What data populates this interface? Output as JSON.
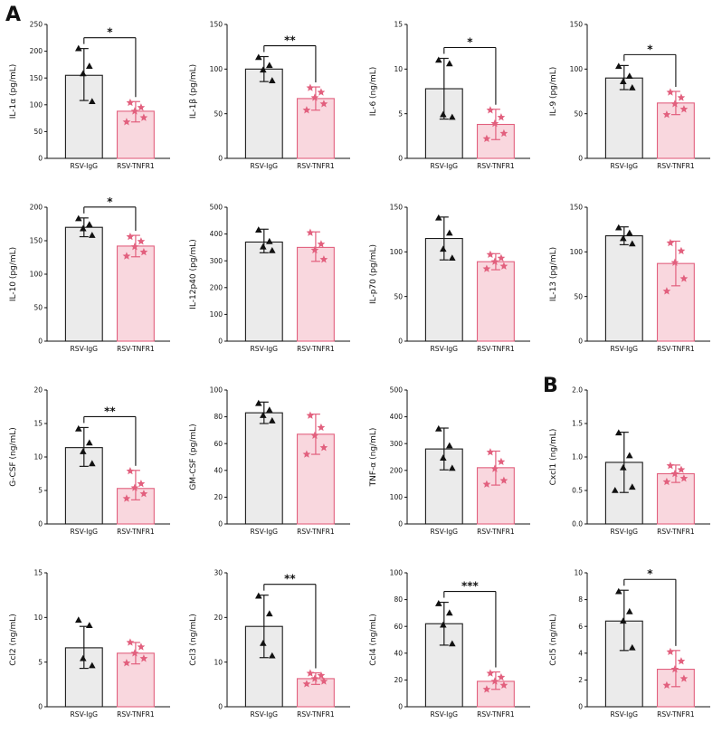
{
  "figure": {
    "panel_a_label": "A",
    "panel_b_label": "B",
    "categories": [
      "RSV-IgG",
      "RSV-TNFR1"
    ],
    "colors": {
      "group1_fill": "#ebebeb",
      "group1_stroke": "#1a1a1a",
      "group1_point": "#111111",
      "group2_fill": "#f9d7de",
      "group2_stroke": "#e2607e",
      "group2_point": "#e2607e"
    }
  },
  "chart_data": [
    {
      "type": "bar",
      "ylabel": "IL-1α (pg/mL)",
      "ylim": [
        0,
        250
      ],
      "yticks": [
        0,
        50,
        100,
        150,
        200,
        250
      ],
      "ytick_labels": [
        "0",
        "50",
        "100",
        "150",
        "200",
        "250"
      ],
      "categories": [
        "RSV-IgG",
        "RSV-TNFR1"
      ],
      "significance": "*",
      "series": [
        {
          "name": "RSV-IgG",
          "mean": 155,
          "err_lo": 108,
          "err_hi": 205,
          "points": [
            205,
            172,
            158,
            106
          ]
        },
        {
          "name": "RSV-TNFR1",
          "mean": 88,
          "err_lo": 68,
          "err_hi": 106,
          "points": [
            104,
            95,
            88,
            76,
            68
          ]
        }
      ]
    },
    {
      "type": "bar",
      "ylabel": "IL-1β (pg/mL)",
      "ylim": [
        0,
        150
      ],
      "yticks": [
        0,
        50,
        100,
        150
      ],
      "ytick_labels": [
        "0",
        "50",
        "100",
        "150"
      ],
      "categories": [
        "RSV-IgG",
        "RSV-TNFR1"
      ],
      "significance": "**",
      "series": [
        {
          "name": "RSV-IgG",
          "mean": 100,
          "err_lo": 86,
          "err_hi": 114,
          "points": [
            113,
            104,
            99,
            87
          ]
        },
        {
          "name": "RSV-TNFR1",
          "mean": 67,
          "err_lo": 54,
          "err_hi": 80,
          "points": [
            79,
            74,
            68,
            61,
            54
          ]
        }
      ]
    },
    {
      "type": "bar",
      "ylabel": "IL-6 (ng/mL)",
      "ylim": [
        0,
        15
      ],
      "yticks": [
        0,
        5,
        10,
        15
      ],
      "ytick_labels": [
        "0",
        "5",
        "10",
        "15"
      ],
      "categories": [
        "RSV-IgG",
        "RSV-TNFR1"
      ],
      "significance": "*",
      "series": [
        {
          "name": "RSV-IgG",
          "mean": 7.8,
          "err_lo": 4.4,
          "err_hi": 11.2,
          "points": [
            11,
            10.6,
            4.9,
            4.6
          ]
        },
        {
          "name": "RSV-TNFR1",
          "mean": 3.8,
          "err_lo": 2.1,
          "err_hi": 5.5,
          "points": [
            5.4,
            4.6,
            3.9,
            2.8,
            2.2
          ]
        }
      ]
    },
    {
      "type": "bar",
      "ylabel": "IL-9 (pg/mL)",
      "ylim": [
        0,
        150
      ],
      "yticks": [
        0,
        50,
        100,
        150
      ],
      "ytick_labels": [
        "0",
        "50",
        "100",
        "150"
      ],
      "categories": [
        "RSV-IgG",
        "RSV-TNFR1"
      ],
      "significance": "*",
      "series": [
        {
          "name": "RSV-IgG",
          "mean": 90,
          "err_lo": 77,
          "err_hi": 104,
          "points": [
            103,
            92,
            86,
            79
          ]
        },
        {
          "name": "RSV-TNFR1",
          "mean": 62,
          "err_lo": 49,
          "err_hi": 75,
          "points": [
            74,
            68,
            61,
            55,
            49
          ]
        }
      ]
    },
    {
      "type": "bar",
      "ylabel": "IL-10 (pg/mL)",
      "ylim": [
        0,
        200
      ],
      "yticks": [
        0,
        50,
        100,
        150,
        200
      ],
      "ytick_labels": [
        "0",
        "50",
        "100",
        "150",
        "200"
      ],
      "categories": [
        "RSV-IgG",
        "RSV-TNFR1"
      ],
      "significance": "*",
      "series": [
        {
          "name": "RSV-IgG",
          "mean": 170,
          "err_lo": 156,
          "err_hi": 184,
          "points": [
            183,
            174,
            168,
            158
          ]
        },
        {
          "name": "RSV-TNFR1",
          "mean": 142,
          "err_lo": 126,
          "err_hi": 158,
          "points": [
            156,
            149,
            141,
            133,
            127
          ]
        }
      ]
    },
    {
      "type": "bar",
      "ylabel": "IL-12p40 (pg/mL)",
      "ylim": [
        0,
        500
      ],
      "yticks": [
        0,
        100,
        200,
        300,
        400,
        500
      ],
      "ytick_labels": [
        "0",
        "100",
        "200",
        "300",
        "400",
        "500"
      ],
      "categories": [
        "RSV-IgG",
        "RSV-TNFR1"
      ],
      "significance": null,
      "series": [
        {
          "name": "RSV-IgG",
          "mean": 370,
          "err_lo": 330,
          "err_hi": 418,
          "points": [
            415,
            372,
            352,
            338
          ]
        },
        {
          "name": "RSV-TNFR1",
          "mean": 350,
          "err_lo": 298,
          "err_hi": 408,
          "points": [
            405,
            362,
            340,
            305
          ]
        }
      ]
    },
    {
      "type": "bar",
      "ylabel": "IL-p70 (pg/mL)",
      "ylim": [
        0,
        150
      ],
      "yticks": [
        0,
        50,
        100,
        150
      ],
      "ytick_labels": [
        "0",
        "50",
        "100",
        "150"
      ],
      "categories": [
        "RSV-IgG",
        "RSV-TNFR1"
      ],
      "significance": null,
      "series": [
        {
          "name": "RSV-IgG",
          "mean": 115,
          "err_lo": 91,
          "err_hi": 139,
          "points": [
            138,
            121,
            103,
            93
          ]
        },
        {
          "name": "RSV-TNFR1",
          "mean": 89,
          "err_lo": 80,
          "err_hi": 98,
          "points": [
            97,
            93,
            89,
            84,
            81
          ]
        }
      ]
    },
    {
      "type": "bar",
      "ylabel": "IL-13 (pg/mL)",
      "ylim": [
        0,
        150
      ],
      "yticks": [
        0,
        50,
        100,
        150
      ],
      "ytick_labels": [
        "0",
        "50",
        "100",
        "150"
      ],
      "categories": [
        "RSV-IgG",
        "RSV-TNFR1"
      ],
      "significance": null,
      "series": [
        {
          "name": "RSV-IgG",
          "mean": 118,
          "err_lo": 108,
          "err_hi": 128,
          "points": [
            127,
            121,
            115,
            109
          ]
        },
        {
          "name": "RSV-TNFR1",
          "mean": 87,
          "err_lo": 62,
          "err_hi": 112,
          "points": [
            110,
            101,
            88,
            70,
            56
          ]
        }
      ]
    },
    {
      "type": "bar",
      "ylabel": "G-CSF (ng/mL)",
      "ylim": [
        0,
        20
      ],
      "yticks": [
        0,
        5,
        10,
        15,
        20
      ],
      "ytick_labels": [
        "0",
        "5",
        "10",
        "15",
        "20"
      ],
      "categories": [
        "RSV-IgG",
        "RSV-TNFR1"
      ],
      "significance": "**",
      "series": [
        {
          "name": "RSV-IgG",
          "mean": 11.4,
          "err_lo": 8.6,
          "err_hi": 14.4,
          "points": [
            14.2,
            12.1,
            10.8,
            9
          ]
        },
        {
          "name": "RSV-TNFR1",
          "mean": 5.3,
          "err_lo": 3.6,
          "err_hi": 8,
          "points": [
            7.9,
            6,
            5.4,
            4.5,
            3.8
          ]
        }
      ]
    },
    {
      "type": "bar",
      "ylabel": "GM-CSF (pg/mL)",
      "ylim": [
        0,
        100
      ],
      "yticks": [
        0,
        20,
        40,
        60,
        80,
        100
      ],
      "ytick_labels": [
        "0",
        "20",
        "40",
        "60",
        "80",
        "100"
      ],
      "categories": [
        "RSV-IgG",
        "RSV-TNFR1"
      ],
      "significance": null,
      "series": [
        {
          "name": "RSV-IgG",
          "mean": 83,
          "err_lo": 75,
          "err_hi": 91,
          "points": [
            90,
            85,
            81,
            77
          ]
        },
        {
          "name": "RSV-TNFR1",
          "mean": 67,
          "err_lo": 52,
          "err_hi": 82,
          "points": [
            81,
            72,
            66,
            57,
            52
          ]
        }
      ]
    },
    {
      "type": "bar",
      "ylabel": "TNF-α (ng/mL)",
      "ylim": [
        0,
        500
      ],
      "yticks": [
        0,
        100,
        200,
        300,
        400,
        500
      ],
      "ytick_labels": [
        "0",
        "100",
        "200",
        "300",
        "400",
        "500"
      ],
      "categories": [
        "RSV-IgG",
        "RSV-TNFR1"
      ],
      "significance": null,
      "series": [
        {
          "name": "RSV-IgG",
          "mean": 280,
          "err_lo": 202,
          "err_hi": 358,
          "points": [
            355,
            292,
            246,
            208
          ]
        },
        {
          "name": "RSV-TNFR1",
          "mean": 210,
          "err_lo": 145,
          "err_hi": 272,
          "points": [
            268,
            232,
            206,
            162,
            148
          ]
        }
      ]
    },
    {
      "type": "bar",
      "ylabel": "Cxcl1 (ng/mL)",
      "ylim": [
        0,
        2
      ],
      "yticks": [
        0,
        0.5,
        1,
        1.5,
        2
      ],
      "ytick_labels": [
        "0.0",
        "0.5",
        "1.0",
        "1.5",
        "2.0"
      ],
      "categories": [
        "RSV-IgG",
        "RSV-TNFR1"
      ],
      "significance": null,
      "series": [
        {
          "name": "RSV-IgG",
          "mean": 0.92,
          "err_lo": 0.47,
          "err_hi": 1.37,
          "points": [
            1.36,
            1.02,
            0.84,
            0.55,
            0.5
          ]
        },
        {
          "name": "RSV-TNFR1",
          "mean": 0.75,
          "err_lo": 0.62,
          "err_hi": 0.88,
          "points": [
            0.87,
            0.81,
            0.75,
            0.68,
            0.63
          ]
        }
      ]
    },
    {
      "type": "bar",
      "ylabel": "Ccl2 (ng/mL)",
      "ylim": [
        0,
        15
      ],
      "yticks": [
        0,
        5,
        10,
        15
      ],
      "ytick_labels": [
        "0",
        "5",
        "10",
        "15"
      ],
      "categories": [
        "RSV-IgG",
        "RSV-TNFR1"
      ],
      "significance": null,
      "series": [
        {
          "name": "RSV-IgG",
          "mean": 6.6,
          "err_lo": 4.3,
          "err_hi": 9,
          "points": [
            9.7,
            9.1,
            5.4,
            4.6
          ]
        },
        {
          "name": "RSV-TNFR1",
          "mean": 6,
          "err_lo": 4.8,
          "err_hi": 7.2,
          "points": [
            7.2,
            6.7,
            6,
            5.4,
            4.9
          ]
        }
      ]
    },
    {
      "type": "bar",
      "ylabel": "Ccl3 (ng/mL)",
      "ylim": [
        0,
        30
      ],
      "yticks": [
        0,
        10,
        20,
        30
      ],
      "ytick_labels": [
        "0",
        "10",
        "20",
        "30"
      ],
      "categories": [
        "RSV-IgG",
        "RSV-TNFR1"
      ],
      "significance": "**",
      "series": [
        {
          "name": "RSV-IgG",
          "mean": 18,
          "err_lo": 11,
          "err_hi": 25,
          "points": [
            24.8,
            20.8,
            14.2,
            11.4
          ]
        },
        {
          "name": "RSV-TNFR1",
          "mean": 6.3,
          "err_lo": 5,
          "err_hi": 7.6,
          "points": [
            7.5,
            7,
            6.3,
            5.7,
            5.1
          ]
        }
      ]
    },
    {
      "type": "bar",
      "ylabel": "Ccl4 (ng/mL)",
      "ylim": [
        0,
        100
      ],
      "yticks": [
        0,
        20,
        40,
        60,
        80,
        100
      ],
      "ytick_labels": [
        "0",
        "20",
        "40",
        "60",
        "80",
        "100"
      ],
      "categories": [
        "RSV-IgG",
        "RSV-TNFR1"
      ],
      "significance": "***",
      "series": [
        {
          "name": "RSV-IgG",
          "mean": 62,
          "err_lo": 46,
          "err_hi": 78,
          "points": [
            77,
            70,
            61,
            47
          ]
        },
        {
          "name": "RSV-TNFR1",
          "mean": 19,
          "err_lo": 13,
          "err_hi": 26,
          "points": [
            25,
            22,
            19,
            16,
            13
          ]
        }
      ]
    },
    {
      "type": "bar",
      "ylabel": "Ccl5 (ng/mL)",
      "ylim": [
        0,
        10
      ],
      "yticks": [
        0,
        2,
        4,
        6,
        8,
        10
      ],
      "ytick_labels": [
        "0",
        "2",
        "4",
        "6",
        "8",
        "10"
      ],
      "categories": [
        "RSV-IgG",
        "RSV-TNFR1"
      ],
      "significance": "*",
      "series": [
        {
          "name": "RSV-IgG",
          "mean": 6.4,
          "err_lo": 4.2,
          "err_hi": 8.7,
          "points": [
            8.6,
            7.1,
            6.4,
            4.4
          ]
        },
        {
          "name": "RSV-TNFR1",
          "mean": 2.8,
          "err_lo": 1.5,
          "err_hi": 4.2,
          "points": [
            4.1,
            3.4,
            2.8,
            2.1,
            1.6
          ]
        }
      ]
    }
  ]
}
